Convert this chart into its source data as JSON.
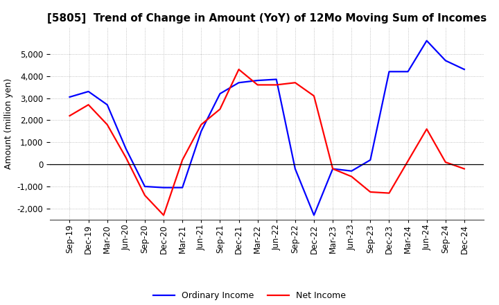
{
  "title": "[5805]  Trend of Change in Amount (YoY) of 12Mo Moving Sum of Incomes",
  "ylabel": "Amount (million yen)",
  "x_labels": [
    "Sep-19",
    "Dec-19",
    "Mar-20",
    "Jun-20",
    "Sep-20",
    "Dec-20",
    "Mar-21",
    "Jun-21",
    "Sep-21",
    "Dec-21",
    "Mar-22",
    "Jun-22",
    "Sep-22",
    "Dec-22",
    "Mar-23",
    "Jun-23",
    "Sep-23",
    "Dec-23",
    "Mar-24",
    "Jun-24",
    "Sep-24",
    "Dec-24"
  ],
  "ordinary_income": [
    3050,
    3300,
    2700,
    700,
    -1000,
    -1050,
    -1050,
    1500,
    3200,
    3700,
    3800,
    3850,
    -200,
    -2300,
    -200,
    -300,
    200,
    4200,
    4200,
    5600,
    4700,
    4300
  ],
  "net_income": [
    2200,
    2700,
    1800,
    300,
    -1400,
    -2300,
    200,
    1800,
    2500,
    4300,
    3600,
    3600,
    3700,
    3100,
    -200,
    -550,
    -1250,
    -1300,
    150,
    1600,
    100,
    -200
  ],
  "ordinary_color": "#0000ff",
  "net_color": "#ff0000",
  "ylim": [
    -2500,
    6200
  ],
  "yticks": [
    -2000,
    -1000,
    0,
    1000,
    2000,
    3000,
    4000,
    5000
  ],
  "background_color": "#ffffff",
  "grid_color": "#b0b0b0",
  "title_fontsize": 11,
  "label_fontsize": 9,
  "tick_fontsize": 8.5
}
